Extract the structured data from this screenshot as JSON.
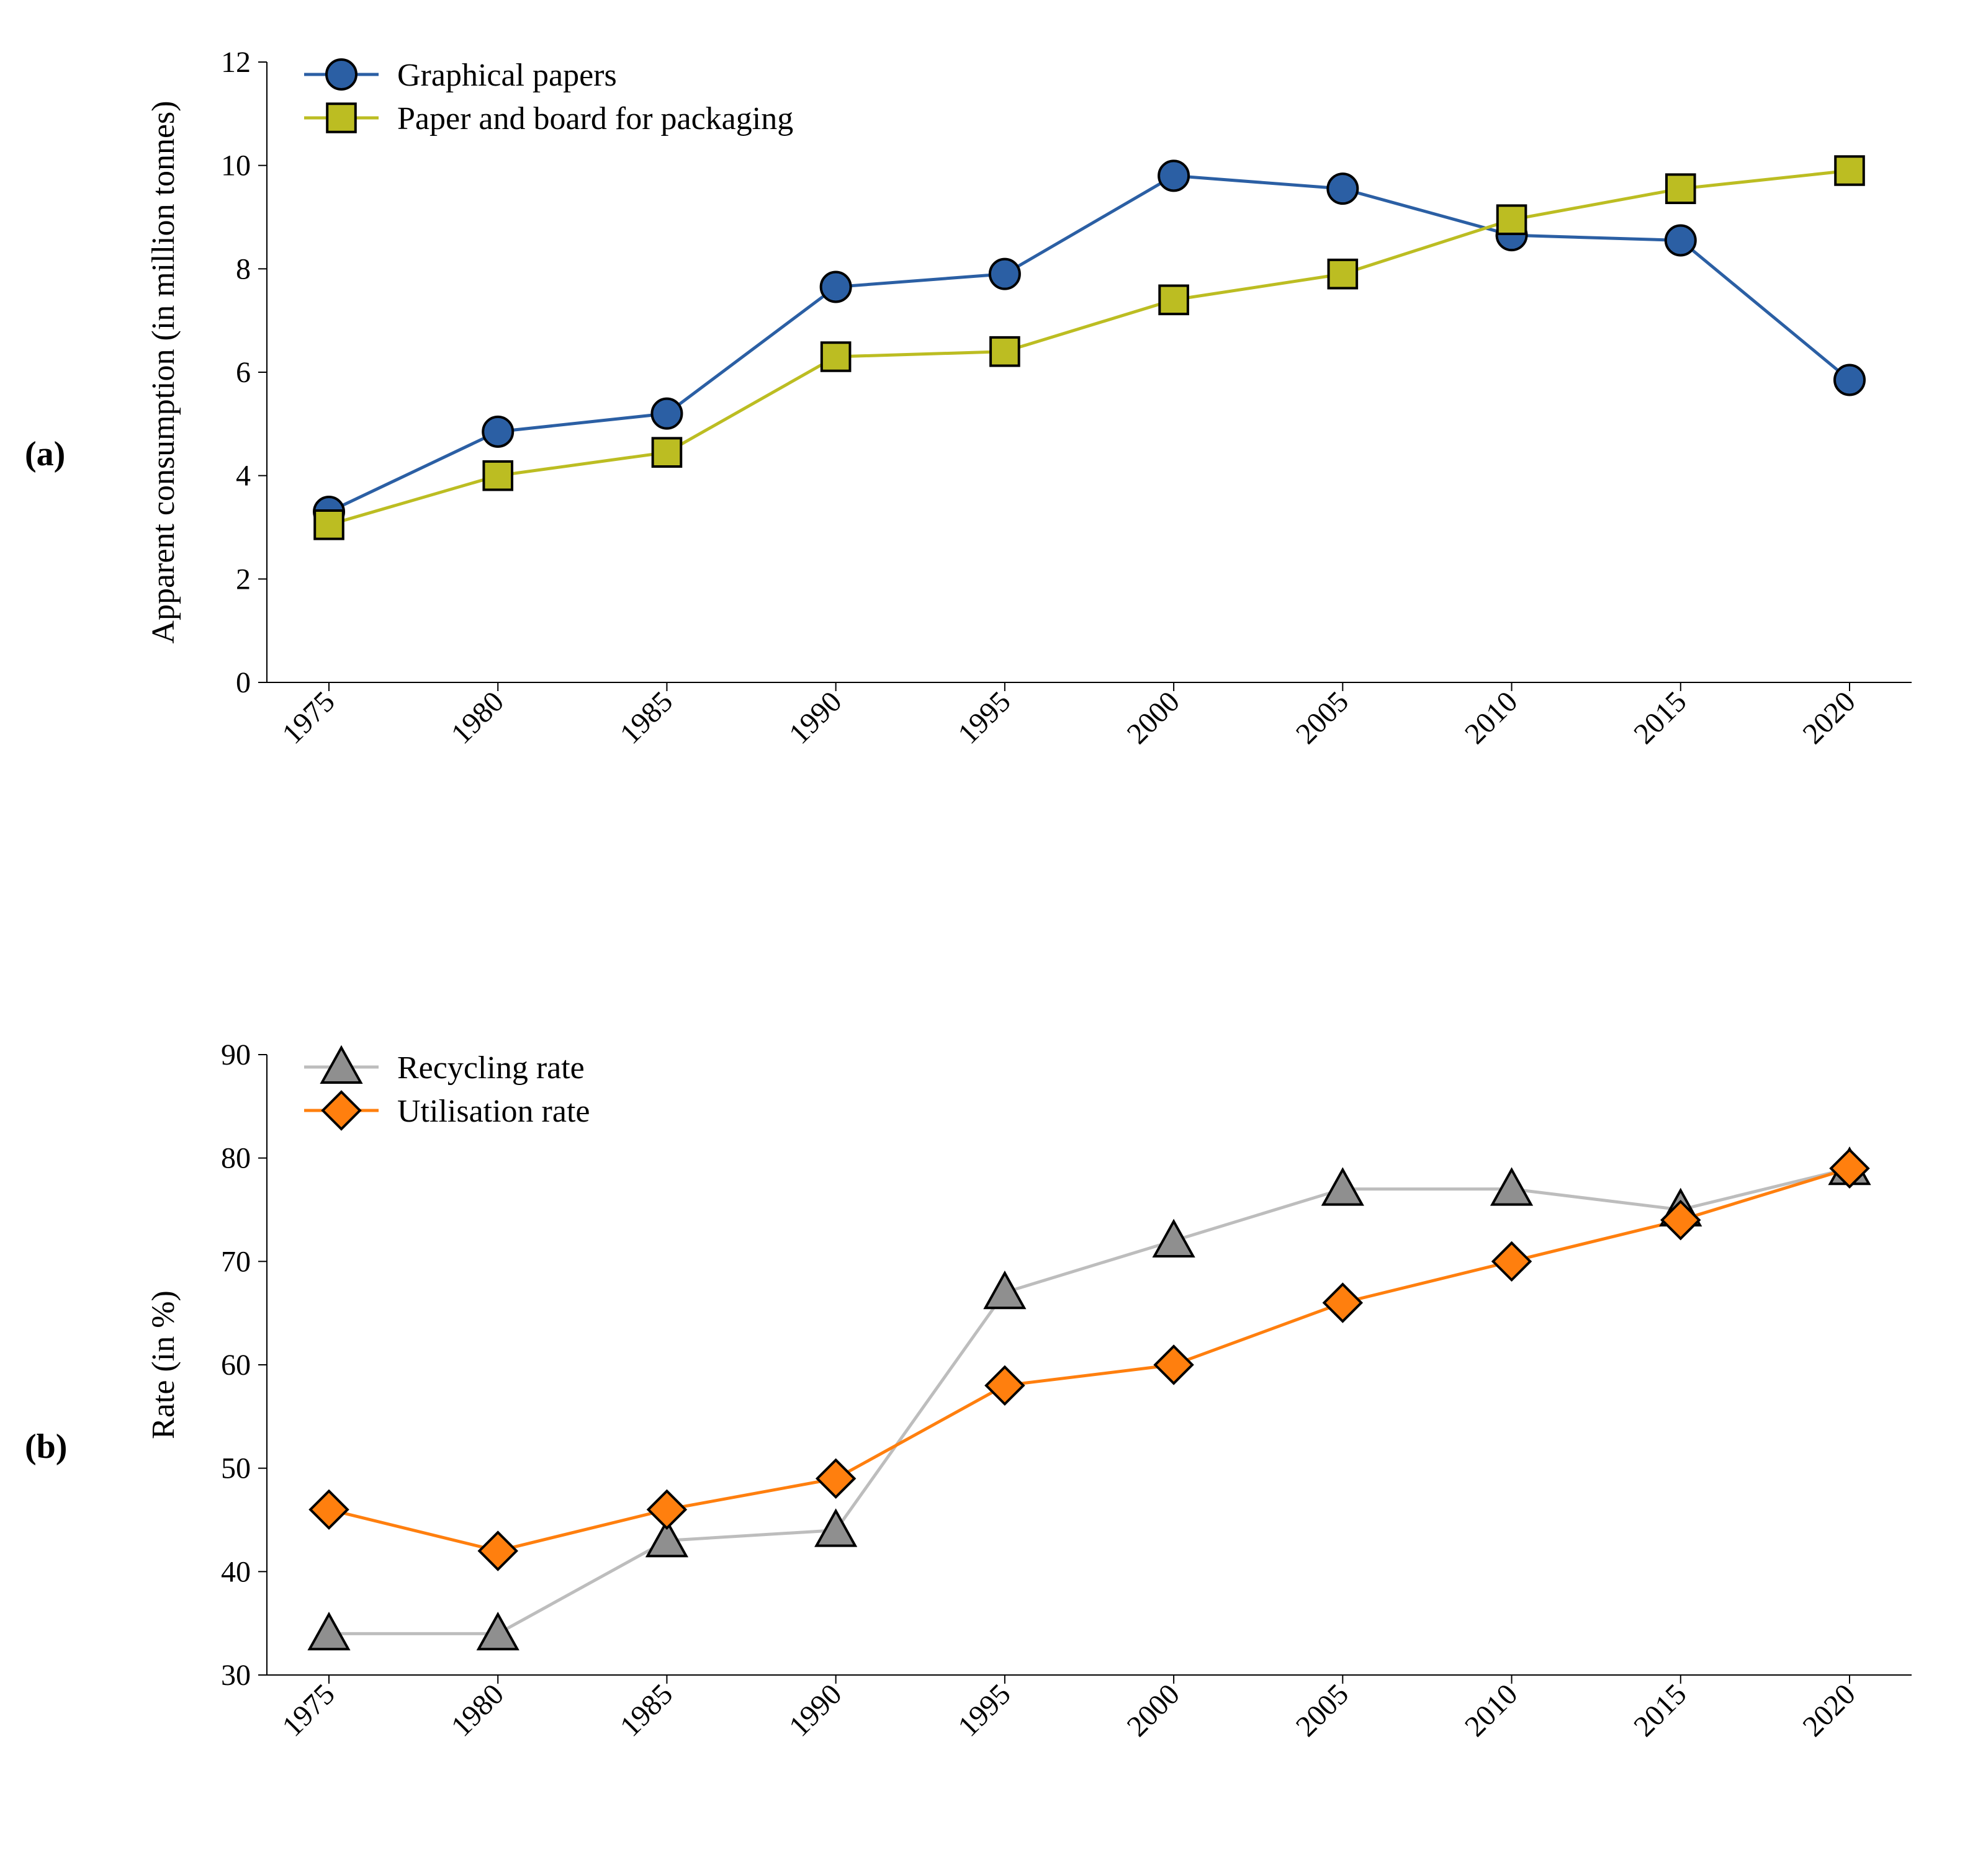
{
  "panelA": {
    "label": "(a)",
    "ylabel": "Apparent consumption (in million tonnes)",
    "categories": [
      "1975",
      "1980",
      "1985",
      "1990",
      "1995",
      "2000",
      "2005",
      "2010",
      "2015",
      "2020"
    ],
    "yticks": [
      0,
      2,
      4,
      6,
      8,
      10,
      12
    ],
    "ylim": [
      0,
      12
    ],
    "axis_fontsize": 48,
    "axis_title_fontsize": 52,
    "legend_fontsize": 52,
    "axis_color": "#000000",
    "background_color": "#ffffff",
    "line_width": 5,
    "marker_size": 24,
    "marker_stroke_width": 4,
    "series": [
      {
        "name": "Graphical papers",
        "color": "#2b5fa4",
        "marker_fill": "#2b5fa4",
        "marker_stroke": "#000000",
        "marker": "circle",
        "values": [
          3.3,
          4.85,
          5.2,
          7.65,
          7.9,
          9.8,
          9.55,
          8.65,
          8.55,
          5.85
        ]
      },
      {
        "name": "Paper and board for packaging",
        "color": "#bcbd22",
        "marker_fill": "#bcbd22",
        "marker_stroke": "#000000",
        "marker": "square",
        "values": [
          3.05,
          4.0,
          4.45,
          6.3,
          6.4,
          7.4,
          7.9,
          8.95,
          9.55,
          9.9
        ]
      }
    ]
  },
  "panelB": {
    "label": "(b)",
    "ylabel": "Rate (in %)",
    "categories": [
      "1975",
      "1980",
      "1985",
      "1990",
      "1995",
      "2000",
      "2005",
      "2010",
      "2015",
      "2020"
    ],
    "yticks": [
      30,
      40,
      50,
      60,
      70,
      80,
      90
    ],
    "ylim": [
      30,
      90
    ],
    "axis_fontsize": 48,
    "axis_title_fontsize": 52,
    "legend_fontsize": 52,
    "axis_color": "#000000",
    "background_color": "#ffffff",
    "line_width": 5,
    "marker_size": 26,
    "marker_stroke_width": 4,
    "series": [
      {
        "name": "Recycling rate",
        "color": "#bdbdbd",
        "marker_fill": "#8f8f8f",
        "marker_stroke": "#000000",
        "marker": "triangle",
        "values": [
          34,
          34,
          43,
          44,
          67,
          72,
          77,
          77,
          75,
          79
        ]
      },
      {
        "name": "Utilisation rate",
        "color": "#ff7f0e",
        "marker_fill": "#ff7f0e",
        "marker_stroke": "#000000",
        "marker": "diamond",
        "values": [
          46,
          42,
          46,
          49,
          58,
          60,
          66,
          70,
          74,
          79
        ]
      }
    ]
  }
}
